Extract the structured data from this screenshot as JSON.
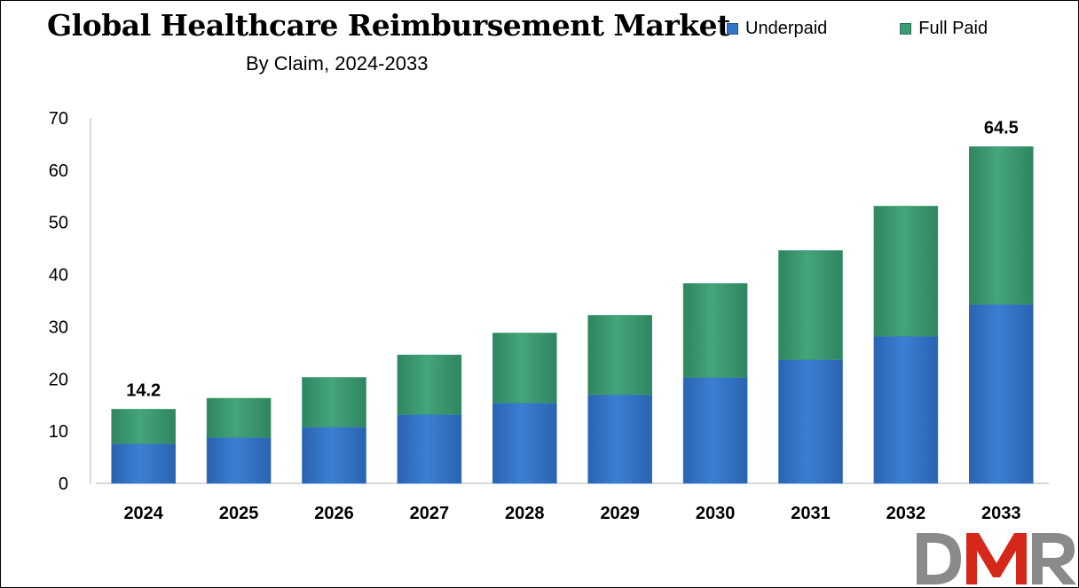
{
  "chart_data": {
    "type": "bar",
    "stacked": true,
    "title": "Global Healthcare Reimbursement Market",
    "subtitle": "By Claim, 2024-2033",
    "categories": [
      "2024",
      "2025",
      "2026",
      "2027",
      "2028",
      "2029",
      "2030",
      "2031",
      "2032",
      "2033"
    ],
    "series": [
      {
        "name": "Underpaid",
        "color": "#3575c8",
        "values": [
          7.6,
          8.8,
          10.8,
          13.2,
          15.4,
          17.0,
          20.3,
          23.7,
          28.2,
          34.3
        ]
      },
      {
        "name": "Full Paid",
        "color": "#3d9b73",
        "values": [
          6.6,
          7.5,
          9.5,
          11.4,
          13.4,
          15.2,
          18.0,
          20.9,
          24.9,
          30.2
        ]
      }
    ],
    "totals": [
      14.2,
      16.3,
      20.3,
      24.6,
      28.8,
      32.2,
      38.3,
      44.6,
      53.1,
      64.5
    ],
    "data_labels": [
      {
        "category": "2024",
        "text": "14.2"
      },
      {
        "category": "2033",
        "text": "64.5"
      }
    ],
    "ylim": [
      0,
      70
    ],
    "yticks": [
      0,
      10,
      20,
      30,
      40,
      50,
      60,
      70
    ],
    "xlabel": "",
    "ylabel": "",
    "grid": false,
    "legend_position": "top-right"
  },
  "logo": {
    "text": "DMR",
    "colors": [
      "#8a8a8a",
      "#d5281b"
    ]
  }
}
